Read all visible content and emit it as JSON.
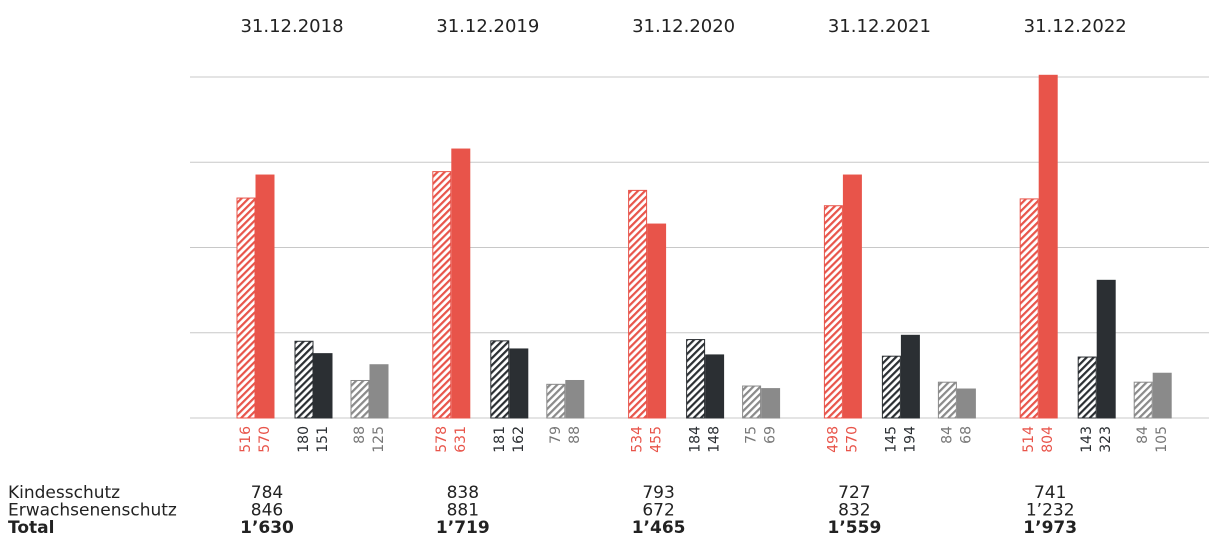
{
  "chart_data": {
    "type": "bar",
    "categories": [
      "31.12.2018",
      "31.12.2019",
      "31.12.2020",
      "31.12.2021",
      "31.12.2022"
    ],
    "series": [
      {
        "color": "#e8544a",
        "hatch": true,
        "values": [
          516,
          578,
          534,
          498,
          514
        ]
      },
      {
        "color": "#e8544a",
        "hatch": false,
        "values": [
          570,
          631,
          455,
          570,
          804
        ]
      },
      {
        "color": "#2b2f33",
        "hatch": true,
        "values": [
          180,
          181,
          184,
          145,
          143
        ]
      },
      {
        "color": "#2b2f33",
        "hatch": false,
        "values": [
          151,
          162,
          148,
          194,
          323
        ]
      },
      {
        "color": "#8a8a8a",
        "hatch": true,
        "values": [
          88,
          79,
          75,
          84,
          84
        ]
      },
      {
        "color": "#8a8a8a",
        "hatch": false,
        "values": [
          125,
          88,
          69,
          68,
          105
        ]
      }
    ],
    "ylim": [
      0,
      800
    ],
    "yticks": [
      0,
      200,
      400,
      600,
      800
    ],
    "grid": true
  },
  "table": {
    "rows": [
      {
        "label": "Kindesschutz",
        "cells": [
          "784",
          "838",
          "793",
          "727",
          "741"
        ],
        "bold": false
      },
      {
        "label": "Erwachsenenschutz",
        "cells": [
          "846",
          "881",
          "672",
          "832",
          "1’232"
        ],
        "bold": false
      },
      {
        "label": "Total",
        "cells": [
          "1’630",
          "1’719",
          "1’465",
          "1’559",
          "1’973"
        ],
        "bold": true
      }
    ]
  }
}
